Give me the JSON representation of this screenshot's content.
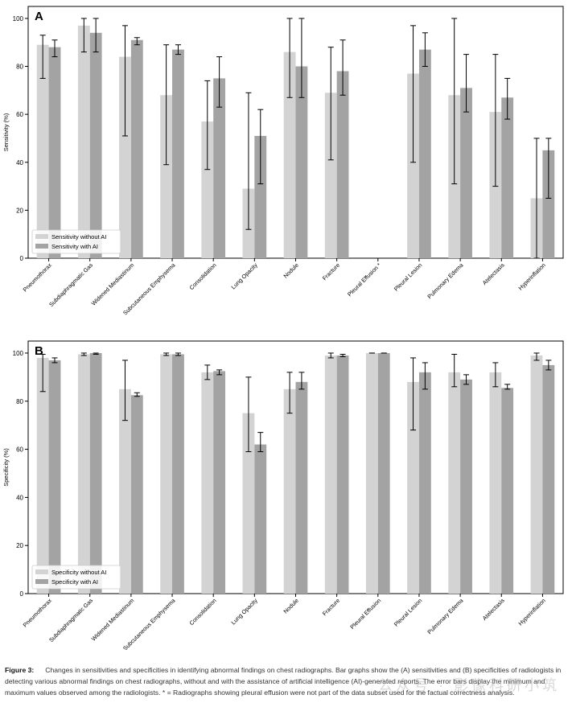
{
  "colors": {
    "without": "#d3d3d3",
    "with": "#a3a3a3",
    "errorbar": "#000000"
  },
  "chart_data": [
    {
      "id": "A",
      "type": "bar",
      "panel_label": "A",
      "title": "",
      "xlabel": "",
      "ylabel": "Sensitivity (%)",
      "ylim": [
        0,
        105
      ],
      "yticks": [
        0,
        20,
        40,
        60,
        80,
        100
      ],
      "legend_position": "lower-left",
      "categories": [
        "Pneumothorax",
        "Subdiaphragmatic Gas",
        "Widened Mediastinum",
        "Subcutaneous Emphysema",
        "Consolidation",
        "Lung Opacity",
        "Nodule",
        "Fracture",
        "Pleural Effusion *",
        "Pleural Lesion",
        "Pulmonary Edema",
        "Atelectasis",
        "Hyperinflation"
      ],
      "series": [
        {
          "name": "Sensitivity without AI",
          "values": [
            89,
            97,
            84,
            68,
            57,
            29,
            86,
            69,
            0,
            77,
            68,
            61,
            25
          ],
          "min": [
            75,
            86,
            51,
            39,
            37,
            12,
            67,
            41,
            null,
            40,
            31,
            30,
            0
          ],
          "max": [
            93,
            100,
            97,
            89,
            74,
            69,
            100,
            88,
            null,
            97,
            100,
            85,
            50
          ]
        },
        {
          "name": "Sensitivity with AI",
          "values": [
            88,
            94,
            91,
            87,
            75,
            51,
            80,
            78,
            0,
            87,
            71,
            67,
            45
          ],
          "min": [
            84,
            86,
            89,
            85,
            63,
            31,
            67,
            68,
            null,
            80,
            61,
            58,
            25
          ],
          "max": [
            91,
            100,
            92,
            89,
            84,
            62,
            100,
            91,
            null,
            94,
            85,
            75,
            50
          ]
        }
      ]
    },
    {
      "id": "B",
      "type": "bar",
      "panel_label": "B",
      "title": "",
      "xlabel": "",
      "ylabel": "Specificity (%)",
      "ylim": [
        0,
        105
      ],
      "yticks": [
        0,
        20,
        40,
        60,
        80,
        100
      ],
      "legend_position": "lower-left",
      "categories": [
        "Pneumothorax",
        "Subdiaphragmatic Gas",
        "Widened Mediastinum",
        "Subcutaneous Emphysema",
        "Consolidation",
        "Lung Opacity",
        "Nodule",
        "Fracture",
        "Pleural Effusion",
        "Pleural Lesion",
        "Pulmonary Edema",
        "Atelectasis",
        "Hyperinflation"
      ],
      "series": [
        {
          "name": "Specificity without AI",
          "values": [
            98,
            99.5,
            85,
            99.5,
            92,
            75,
            85,
            99,
            100,
            88,
            92,
            92,
            99
          ],
          "min": [
            84,
            99,
            72,
            99,
            89,
            59,
            75,
            98,
            100,
            68,
            86,
            86,
            97
          ],
          "max": [
            99.5,
            100,
            97,
            100,
            95,
            90,
            92,
            100,
            100,
            98,
            99.5,
            96,
            100
          ]
        },
        {
          "name": "Specificity with AI",
          "values": [
            97,
            100,
            82.5,
            99.5,
            92.5,
            62,
            88,
            99,
            100,
            92,
            89,
            85.5,
            95
          ],
          "min": [
            96,
            99.5,
            82,
            99,
            91,
            59,
            85,
            98.5,
            100,
            85,
            87,
            85,
            93
          ],
          "max": [
            98,
            100,
            83.5,
            100,
            93,
            67,
            92,
            99.5,
            100,
            96,
            91,
            87,
            97
          ]
        }
      ]
    }
  ],
  "caption": {
    "label": "Figure 3:",
    "text": "Changes in sensitivities and specificities in identifying abnormal findings on chest radiographs. Bar graphs show the (A) sensitivities and (B) specificities of radiologists in detecting various abnormal findings on chest radiographs, without and with the assistance of artificial intelligence (AI)-generated reports. The error bars display the minimum and maximum values observed among the radiologists. * = Radiographs showing pleural effusion were not part of the data subset used for the factual correctness analysis."
  },
  "watermark": "公众号 · 影像科研小筑"
}
